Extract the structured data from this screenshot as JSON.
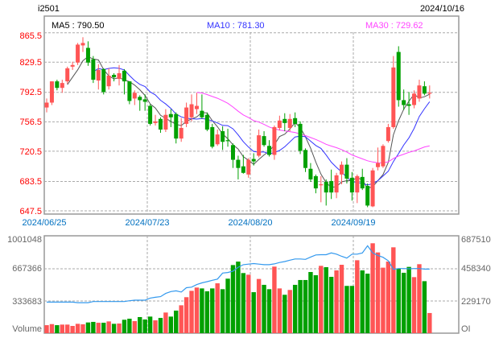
{
  "header": {
    "symbol": "i2501",
    "date": "2024/10/16"
  },
  "legend": {
    "ma5": "MA5 : 790.50",
    "ma10": "MA10 : 781.30",
    "ma30": "MA30 : 729.62"
  },
  "colors": {
    "up": "#ff5555",
    "down": "#00a000",
    "ma5": "#555555",
    "ma10": "#3333ff",
    "ma30": "#ff44ff",
    "oi": "#3399ee",
    "price_axis": "#ff0000",
    "date_axis": "#0070c0",
    "volume_axis": "#666666"
  },
  "chart_data": [
    {
      "type": "candlestick",
      "title": "",
      "y_ticks": [
        "865.5",
        "829.5",
        "792.5",
        "756.5",
        "720.5",
        "683.5",
        "647.5"
      ],
      "ylim": [
        647.5,
        865.5
      ],
      "x_ticks": [
        "2024/06/25",
        "2024/07/23",
        "2024/08/20",
        "2024/09/19"
      ],
      "grid": true,
      "moving_averages": [
        5,
        10,
        30
      ],
      "ohlc": [
        [
          774,
          780,
          785,
          768
        ],
        [
          780,
          806,
          806,
          777
        ],
        [
          806,
          798,
          808,
          795
        ],
        [
          798,
          804,
          808,
          792
        ],
        [
          806,
          822,
          824,
          803
        ],
        [
          824,
          826,
          830,
          820
        ],
        [
          829,
          851,
          853,
          826
        ],
        [
          850,
          853,
          860,
          842
        ],
        [
          847,
          829,
          855,
          825
        ],
        [
          833,
          808,
          837,
          804
        ],
        [
          807,
          820,
          827,
          796
        ],
        [
          821,
          793,
          822,
          790
        ],
        [
          800,
          813,
          822,
          796
        ],
        [
          814,
          811,
          816,
          806
        ],
        [
          809,
          816,
          826,
          801
        ],
        [
          819,
          806,
          821,
          790
        ],
        [
          806,
          782,
          806,
          778
        ],
        [
          785,
          792,
          795,
          777
        ],
        [
          787,
          783,
          789,
          770
        ],
        [
          784,
          781,
          790,
          770
        ],
        [
          776,
          754,
          778,
          752
        ],
        [
          755,
          757,
          765,
          752
        ],
        [
          760,
          747,
          762,
          743
        ],
        [
          747,
          765,
          772,
          744
        ],
        [
          766,
          762,
          772,
          750
        ],
        [
          766,
          736,
          768,
          730
        ],
        [
          736,
          749,
          761,
          732
        ],
        [
          754,
          774,
          780,
          750
        ],
        [
          762,
          778,
          790,
          757
        ],
        [
          772,
          776,
          792,
          766
        ],
        [
          770,
          762,
          790,
          760
        ],
        [
          765,
          747,
          768,
          745
        ],
        [
          750,
          726,
          754,
          724
        ],
        [
          729,
          741,
          747,
          727
        ],
        [
          745,
          732,
          751,
          722
        ],
        [
          734,
          733,
          748,
          726
        ],
        [
          728,
          710,
          730,
          700
        ],
        [
          710,
          700,
          715,
          686
        ],
        [
          702,
          694,
          716,
          693
        ],
        [
          692,
          710,
          712,
          688
        ],
        [
          711,
          708,
          718,
          703
        ],
        [
          715,
          740,
          747,
          713
        ],
        [
          739,
          728,
          745,
          726
        ],
        [
          727,
          716,
          734,
          714
        ],
        [
          716,
          750,
          752,
          710
        ],
        [
          749,
          758,
          764,
          746
        ],
        [
          760,
          755,
          767,
          745
        ],
        [
          749,
          760,
          766,
          745
        ],
        [
          761,
          754,
          768,
          750
        ],
        [
          754,
          721,
          757,
          717
        ],
        [
          722,
          700,
          724,
          695
        ],
        [
          699,
          686,
          706,
          683
        ],
        [
          690,
          675,
          692,
          669
        ],
        [
          679,
          680,
          690,
          658
        ],
        [
          683,
          670,
          686,
          654
        ],
        [
          684,
          670,
          698,
          662
        ],
        [
          670,
          691,
          694,
          663
        ],
        [
          692,
          704,
          708,
          680
        ],
        [
          704,
          687,
          712,
          681
        ],
        [
          688,
          670,
          695,
          660
        ],
        [
          670,
          690,
          692,
          657
        ],
        [
          689,
          675,
          699,
          673
        ],
        [
          678,
          654,
          681,
          652
        ],
        [
          653,
          697,
          700,
          652
        ],
        [
          701,
          706,
          725,
          697
        ],
        [
          702,
          727,
          729,
          700
        ],
        [
          733,
          750,
          754,
          731
        ],
        [
          750,
          823,
          837,
          748
        ],
        [
          842,
          783,
          849,
          775
        ],
        [
          783,
          777,
          796,
          771
        ],
        [
          778,
          776,
          793,
          765
        ],
        [
          777,
          791,
          795,
          773
        ],
        [
          785,
          801,
          808,
          781
        ],
        [
          800,
          791,
          806,
          789
        ],
        [
          791,
          792,
          801,
          785
        ]
      ]
    },
    {
      "type": "bar",
      "ylabel_left": "Volume",
      "ylabel_right": "OI",
      "y_ticks_left": [
        "1001048",
        "667366",
        "333683"
      ],
      "y_ticks_right": [
        "687510",
        "458340",
        "229170"
      ],
      "ylim_left": [
        0,
        1001048
      ],
      "ylim_right": [
        0,
        687510
      ],
      "volume": [
        83000,
        94000,
        83000,
        89000,
        89000,
        75000,
        97000,
        92000,
        111000,
        117000,
        108000,
        108000,
        122000,
        97000,
        100000,
        139000,
        150000,
        125000,
        167000,
        142000,
        172000,
        133000,
        158000,
        214000,
        172000,
        234000,
        289000,
        373000,
        439000,
        473000,
        464000,
        434000,
        464000,
        517000,
        456000,
        565000,
        706000,
        742000,
        623000,
        606000,
        425000,
        562000,
        501000,
        456000,
        690000,
        464000,
        398000,
        448000,
        501000,
        551000,
        551000,
        634000,
        601000,
        698000,
        684000,
        584000,
        651000,
        709000,
        490000,
        490000,
        756000,
        651000,
        617000,
        932000,
        837000,
        679000,
        742000,
        890000,
        667000,
        626000,
        687000,
        581000,
        715000,
        539000,
        209000
      ],
      "open_interest": [
        227000,
        227000,
        227000,
        227000,
        227000,
        227000,
        223000,
        223000,
        223000,
        231000,
        231000,
        231000,
        231000,
        231000,
        231000,
        231000,
        237000,
        241000,
        241000,
        241000,
        256000,
        262000,
        267000,
        290000,
        304000,
        309000,
        300000,
        332000,
        336000,
        355000,
        367000,
        376000,
        386000,
        395000,
        439000,
        443000,
        453000,
        481000,
        500000,
        504000,
        508000,
        504000,
        500000,
        500000,
        506000,
        516000,
        523000,
        533000,
        542000,
        542000,
        539000,
        556000,
        571000,
        573000,
        573000,
        586000,
        577000,
        561000,
        548000,
        577000,
        577000,
        586000,
        638000,
        586000,
        567000,
        554000,
        529000,
        466000,
        472000,
        472000,
        470000,
        472000,
        472000,
        468000,
        468000
      ]
    }
  ]
}
